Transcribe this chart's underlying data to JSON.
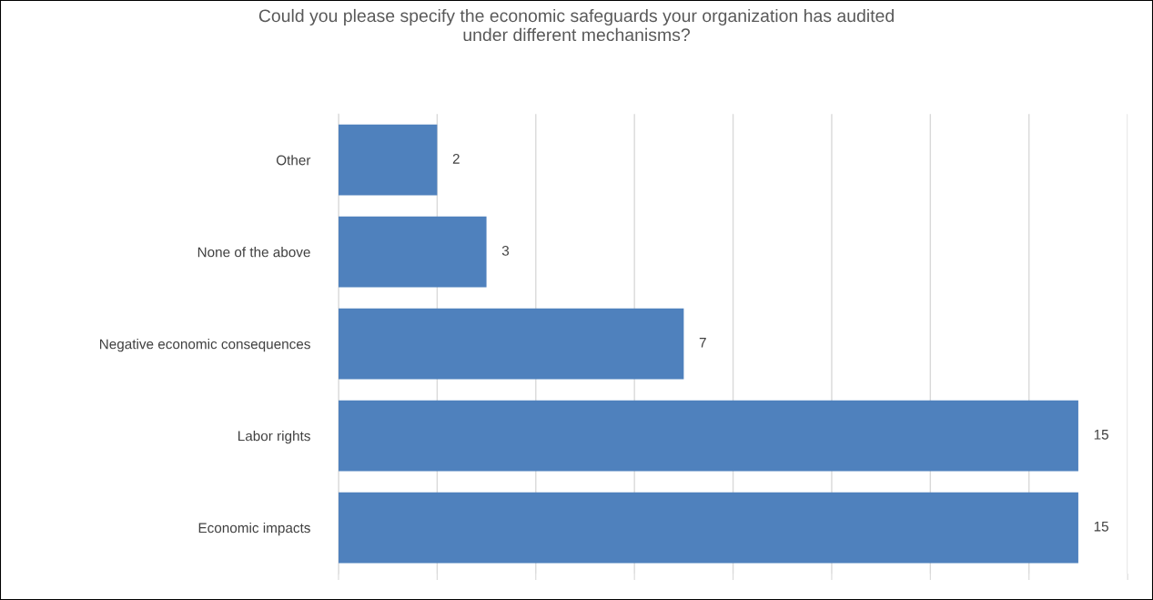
{
  "chart_data": {
    "type": "bar",
    "orientation": "horizontal",
    "title": "Could you please specify the economic safeguards your organization has audited\nunder different mechanisms?",
    "categories": [
      "Other",
      "None of the above",
      "Negative economic consequences",
      "Labor rights",
      "Economic impacts"
    ],
    "values": [
      2,
      3,
      7,
      15,
      15
    ],
    "color": "#4f81bd",
    "xlim": [
      0,
      16
    ],
    "xticks": [
      {
        "value": 0,
        "label": null
      },
      {
        "value": 2,
        "label": null
      },
      {
        "value": 4,
        "label": null
      },
      {
        "value": 6,
        "label": null
      },
      {
        "value": 8,
        "label": null
      },
      {
        "value": 10,
        "label": null
      },
      {
        "value": 12,
        "label": null
      },
      {
        "value": 14,
        "label": null
      },
      {
        "value": 16,
        "label": null
      }
    ],
    "grid": "x",
    "tick_labels": "y",
    "data_labels": true,
    "legend": false
  }
}
